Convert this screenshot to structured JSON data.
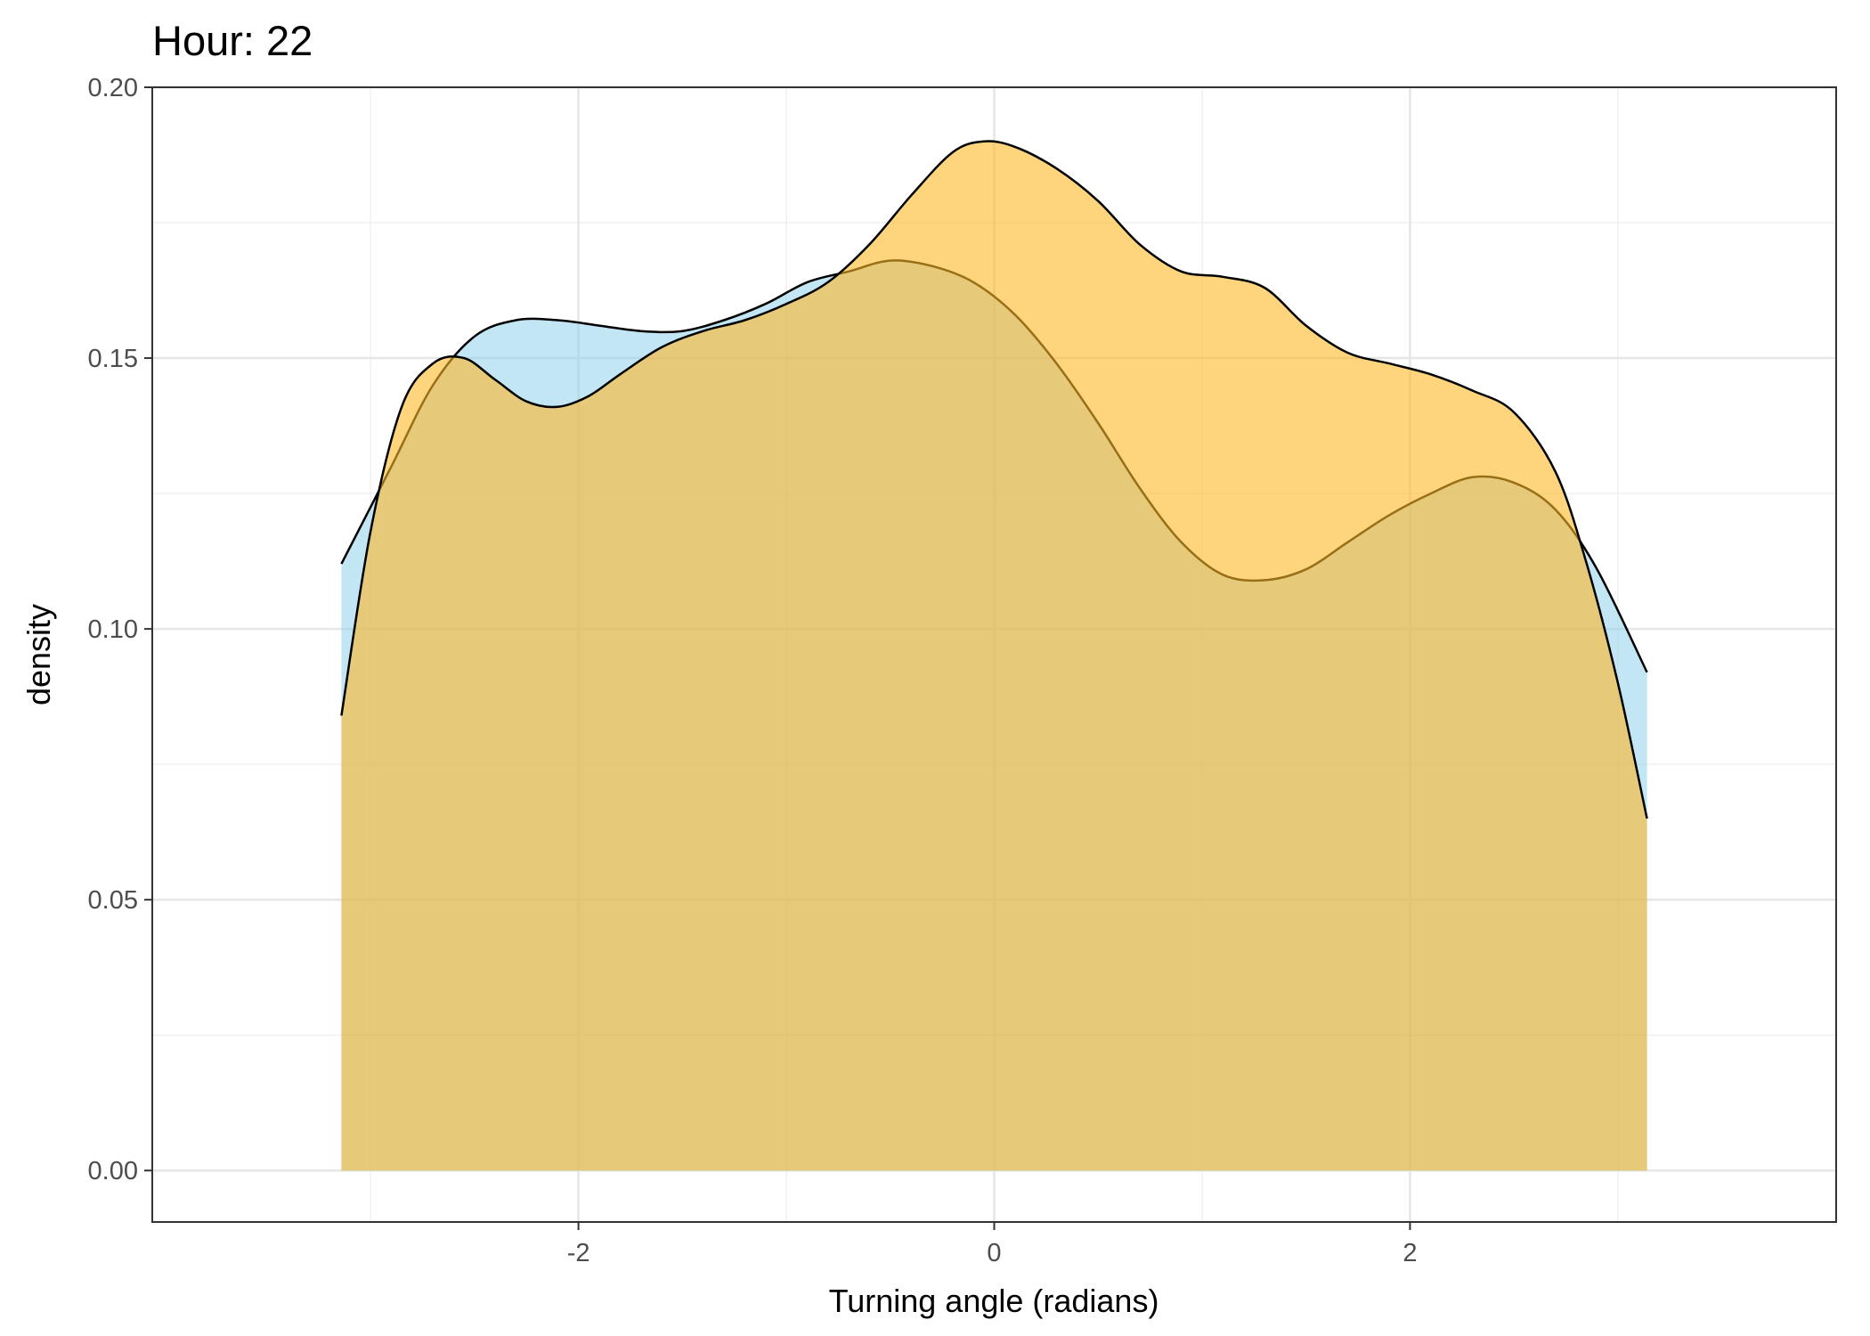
{
  "chart_data": {
    "type": "area",
    "title": "Hour: 22",
    "xlabel": "Turning angle (radians)",
    "ylabel": "density",
    "xlim": [
      -4.05,
      4.05
    ],
    "ylim": [
      -0.0095,
      0.2
    ],
    "x_ticks": [
      -2,
      0,
      2
    ],
    "x_tick_labels": [
      "-2",
      "0",
      "2"
    ],
    "y_ticks": [
      0.0,
      0.05,
      0.1,
      0.15,
      0.2
    ],
    "y_tick_labels": [
      "0.00",
      "0.05",
      "0.10",
      "0.15",
      "0.20"
    ],
    "grid": true,
    "legend": "none",
    "series": [
      {
        "color": "#87CEEB",
        "opacity": 0.5,
        "x": [
          -3.14,
          -2.9,
          -2.7,
          -2.5,
          -2.3,
          -2.1,
          -1.9,
          -1.7,
          -1.5,
          -1.3,
          -1.1,
          -0.9,
          -0.7,
          -0.5,
          -0.3,
          -0.1,
          0.1,
          0.3,
          0.5,
          0.7,
          0.9,
          1.1,
          1.3,
          1.5,
          1.7,
          1.9,
          2.1,
          2.3,
          2.5,
          2.7,
          2.9,
          3.14
        ],
        "values": [
          0.112,
          0.13,
          0.145,
          0.154,
          0.157,
          0.157,
          0.156,
          0.155,
          0.155,
          0.157,
          0.16,
          0.164,
          0.166,
          0.168,
          0.167,
          0.164,
          0.158,
          0.149,
          0.138,
          0.126,
          0.116,
          0.11,
          0.109,
          0.111,
          0.116,
          0.121,
          0.125,
          0.128,
          0.127,
          0.122,
          0.111,
          0.092
        ]
      },
      {
        "color": "#FDB827",
        "opacity": 0.6,
        "x": [
          -3.14,
          -3.0,
          -2.85,
          -2.7,
          -2.55,
          -2.4,
          -2.25,
          -2.1,
          -1.95,
          -1.8,
          -1.6,
          -1.4,
          -1.2,
          -1.0,
          -0.8,
          -0.6,
          -0.4,
          -0.2,
          -0.05,
          0.1,
          0.3,
          0.5,
          0.7,
          0.9,
          1.1,
          1.3,
          1.5,
          1.7,
          1.9,
          2.1,
          2.3,
          2.5,
          2.7,
          2.85,
          3.0,
          3.14
        ],
        "values": [
          0.084,
          0.118,
          0.141,
          0.149,
          0.15,
          0.146,
          0.142,
          0.141,
          0.143,
          0.147,
          0.152,
          0.155,
          0.157,
          0.16,
          0.164,
          0.171,
          0.18,
          0.188,
          0.19,
          0.189,
          0.185,
          0.179,
          0.171,
          0.166,
          0.165,
          0.163,
          0.156,
          0.151,
          0.149,
          0.147,
          0.144,
          0.14,
          0.129,
          0.112,
          0.09,
          0.065
        ]
      }
    ]
  }
}
